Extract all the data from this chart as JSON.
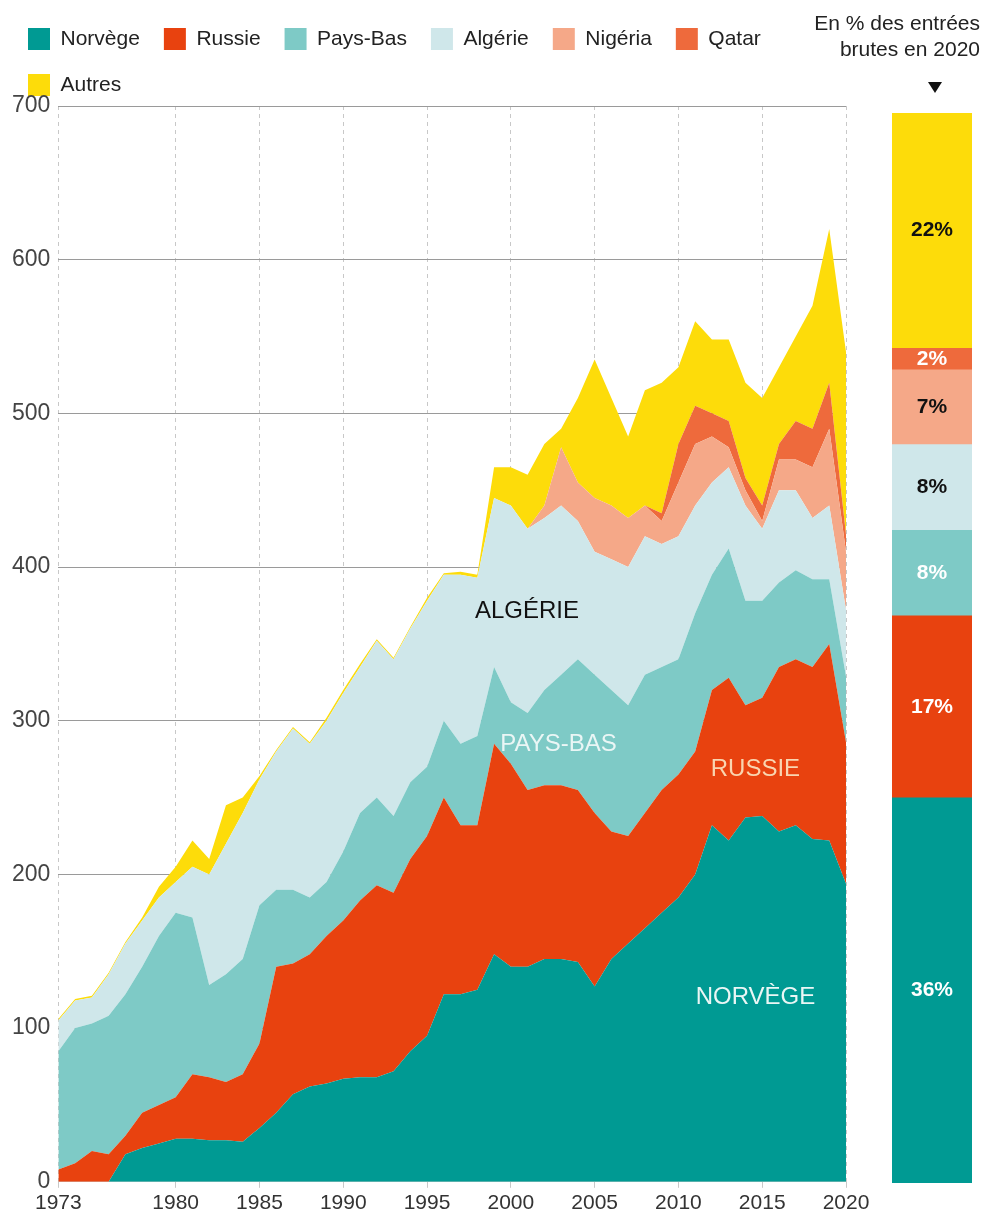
{
  "chart_data": [
    {
      "type": "area",
      "stacked": true,
      "legend": "top left",
      "grid": true,
      "x": [
        1973,
        1974,
        1975,
        1976,
        1977,
        1978,
        1979,
        1980,
        1981,
        1982,
        1983,
        1984,
        1985,
        1986,
        1987,
        1988,
        1989,
        1990,
        1991,
        1992,
        1993,
        1994,
        1995,
        1996,
        1997,
        1998,
        1999,
        2000,
        2001,
        2002,
        2003,
        2004,
        2005,
        2006,
        2007,
        2008,
        2009,
        2010,
        2011,
        2012,
        2013,
        2014,
        2015,
        2016,
        2017,
        2018,
        2019,
        2020
      ],
      "xlim": [
        1973,
        2020
      ],
      "xticks": [
        1973,
        1980,
        1985,
        1990,
        1995,
        2000,
        2005,
        2010,
        2015,
        2020
      ],
      "ylim": [
        0,
        700
      ],
      "yticks": [
        0,
        100,
        200,
        300,
        400,
        500,
        600,
        700
      ],
      "series": [
        {
          "name": "Norvège",
          "color": "#009a93",
          "values": [
            0,
            0,
            0,
            0,
            18,
            22,
            25,
            28,
            28,
            27,
            27,
            26,
            35,
            45,
            57,
            62,
            64,
            67,
            68,
            68,
            72,
            85,
            95,
            122,
            122,
            125,
            148,
            140,
            140,
            145,
            145,
            143,
            127,
            145,
            155,
            165,
            175,
            185,
            200,
            232,
            222,
            237,
            238,
            228,
            232,
            223,
            222,
            194
          ]
        },
        {
          "name": "Russie",
          "color": "#e8420f",
          "values": [
            8,
            12,
            20,
            18,
            12,
            23,
            25,
            27,
            42,
            41,
            38,
            44,
            55,
            95,
            85,
            86,
            96,
            103,
            115,
            125,
            116,
            125,
            130,
            128,
            110,
            107,
            137,
            132,
            115,
            113,
            113,
            112,
            113,
            83,
            70,
            75,
            80,
            80,
            80,
            88,
            106,
            73,
            77,
            107,
            108,
            112,
            128,
            92
          ]
        },
        {
          "name": "Pays-Bas",
          "color": "#7ecac6",
          "values": [
            77,
            88,
            83,
            90,
            92,
            95,
            110,
            120,
            102,
            60,
            70,
            75,
            90,
            50,
            48,
            37,
            35,
            45,
            57,
            57,
            50,
            50,
            45,
            50,
            53,
            58,
            50,
            40,
            50,
            62,
            72,
            85,
            90,
            92,
            85,
            90,
            80,
            75,
            90,
            75,
            84,
            68,
            63,
            55,
            58,
            57,
            42,
            43
          ]
        },
        {
          "name": "Algérie",
          "color": "#cfe7ea",
          "values": [
            20,
            18,
            17,
            27,
            33,
            30,
            25,
            20,
            33,
            72,
            85,
            95,
            82,
            90,
            105,
            100,
            105,
            103,
            95,
            102,
            102,
            100,
            108,
            95,
            110,
            103,
            110,
            128,
            120,
            112,
            110,
            90,
            80,
            85,
            90,
            90,
            80,
            80,
            70,
            60,
            53,
            62,
            47,
            60,
            52,
            40,
            48,
            43
          ]
        },
        {
          "name": "Nigéria",
          "color": "#f5a888",
          "values": [
            0,
            0,
            0,
            0,
            0,
            0,
            0,
            0,
            0,
            0,
            0,
            0,
            0,
            0,
            0,
            0,
            0,
            0,
            0,
            0,
            0,
            0,
            0,
            0,
            0,
            0,
            0,
            0,
            0,
            8,
            38,
            25,
            35,
            35,
            32,
            20,
            15,
            35,
            40,
            30,
            13,
            10,
            5,
            20,
            20,
            33,
            50,
            38
          ]
        },
        {
          "name": "Qatar",
          "color": "#ee6a3c",
          "values": [
            0,
            0,
            0,
            0,
            0,
            0,
            0,
            0,
            0,
            0,
            0,
            0,
            0,
            0,
            0,
            0,
            0,
            0,
            0,
            0,
            0,
            0,
            0,
            0,
            0,
            0,
            0,
            0,
            0,
            0,
            0,
            0,
            0,
            0,
            0,
            0,
            5,
            25,
            25,
            15,
            17,
            8,
            10,
            10,
            25,
            25,
            30,
            11
          ]
        },
        {
          "name": "Autres",
          "color": "#fddc0a",
          "values": [
            1,
            1,
            1,
            1,
            1,
            2,
            7,
            10,
            17,
            10,
            25,
            10,
            2,
            1,
            1,
            1,
            2,
            2,
            2,
            1,
            1,
            1,
            2,
            1,
            2,
            2,
            20,
            25,
            35,
            40,
            12,
            55,
            90,
            70,
            53,
            75,
            85,
            50,
            55,
            48,
            53,
            62,
            70,
            50,
            55,
            80,
            100,
            119
          ]
        }
      ],
      "annotations": [
        "ALGÉRIE",
        "PAYS-BAS",
        "RUSSIE",
        "NORVÈGE"
      ]
    },
    {
      "type": "bar",
      "stacked": true,
      "title": "En % des entrées brutes en 2020",
      "categories": [
        null
      ],
      "series": [
        {
          "color": "#009a93",
          "values": [
            36
          ],
          "value_labels": [
            "36%"
          ]
        },
        {
          "color": "#e8420f",
          "values": [
            17
          ],
          "value_labels": [
            "17%"
          ]
        },
        {
          "color": "#7ecac6",
          "values": [
            8
          ],
          "value_labels": [
            "8%"
          ]
        },
        {
          "color": "#cfe7ea",
          "values": [
            8
          ],
          "value_labels": [
            "8%"
          ]
        },
        {
          "color": "#f5a888",
          "values": [
            7
          ],
          "value_labels": [
            "7%"
          ]
        },
        {
          "color": "#ee6a3c",
          "values": [
            2
          ],
          "value_labels": [
            "2%"
          ]
        },
        {
          "color": "#fddc0a",
          "values": [
            22
          ],
          "value_labels": [
            "22%"
          ]
        }
      ]
    }
  ]
}
